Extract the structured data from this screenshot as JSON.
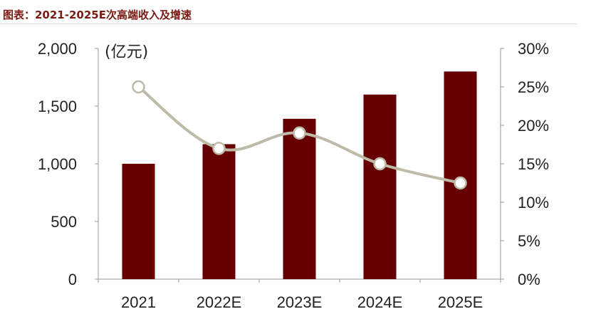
{
  "header": {
    "title": "图表：2021-2025E次高端收入及增速"
  },
  "chart_data": {
    "type": "bar",
    "title": "图表：2021-2025E次高端收入及增速",
    "categories": [
      "2021",
      "2022E",
      "2023E",
      "2024E",
      "2025E"
    ],
    "series": [
      {
        "type": "bar",
        "axis": "left",
        "values": [
          1000,
          1170,
          1390,
          1600,
          1800
        ],
        "color": "#660000"
      },
      {
        "type": "line",
        "axis": "right",
        "values": [
          25,
          17,
          19,
          15,
          12.5
        ],
        "color": "#bebaa8"
      }
    ],
    "y_left": {
      "unit_label": "(亿元)",
      "ylim": [
        0,
        2000
      ],
      "ticks": [
        "0",
        "500",
        "1,000",
        "1,500",
        "2,000"
      ]
    },
    "y_right": {
      "ylim": [
        0,
        30
      ],
      "ticks": [
        "0%",
        "5%",
        "10%",
        "15%",
        "20%",
        "25%",
        "30%"
      ]
    },
    "grid": false,
    "legend": "none"
  }
}
